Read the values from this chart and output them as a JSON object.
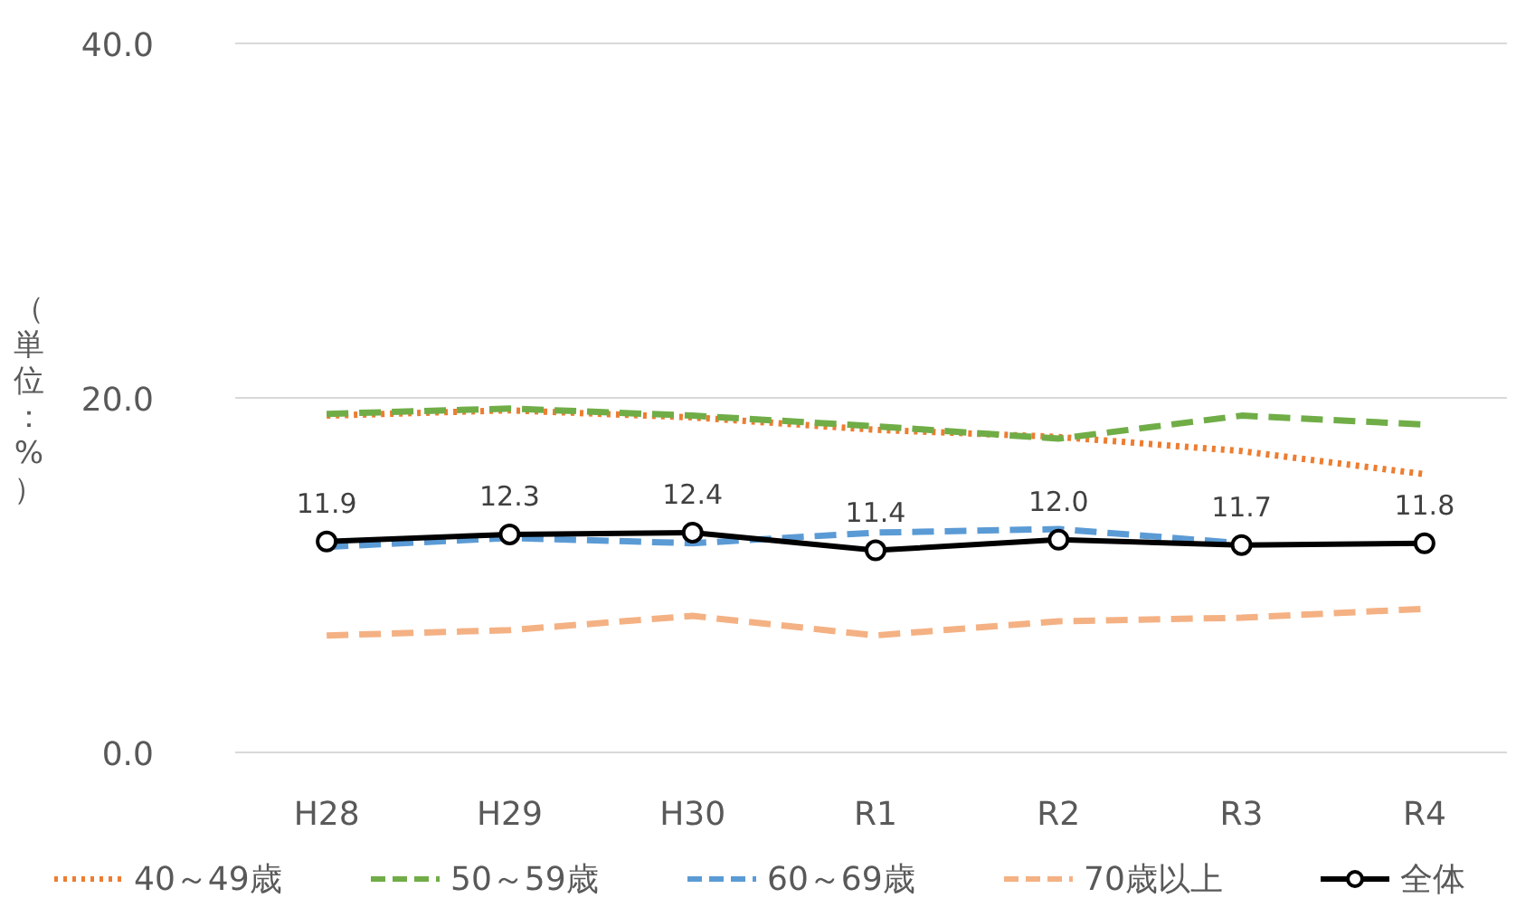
{
  "chart_data": {
    "type": "line",
    "ylabel": "（単位：%）",
    "categories": [
      "H28",
      "H29",
      "H30",
      "R1",
      "R2",
      "R3",
      "R4"
    ],
    "ylim": [
      0,
      40
    ],
    "yticks": [
      {
        "value": 0,
        "label": "0.0"
      },
      {
        "value": 20,
        "label": "20.0"
      },
      {
        "value": 40,
        "label": "40.0"
      }
    ],
    "grid": "y",
    "legend": "bottom",
    "series": [
      {
        "name": "40～49歳",
        "color": "#ed7d31",
        "line_style": "dotted",
        "marker": "none",
        "values": [
          19.0,
          19.3,
          18.9,
          18.2,
          17.8,
          17.0,
          15.7
        ]
      },
      {
        "name": "50～59歳",
        "color": "#70ad47",
        "line_style": "dashed",
        "marker": "none",
        "values": [
          19.1,
          19.4,
          19.0,
          18.4,
          17.7,
          19.0,
          18.5
        ]
      },
      {
        "name": "60～69歳",
        "color": "#5b9bd5",
        "line_style": "dashed",
        "marker": "none",
        "values": [
          11.6,
          12.1,
          11.8,
          12.4,
          12.6,
          11.8,
          null
        ]
      },
      {
        "name": "70歳以上",
        "color": "#f4b183",
        "line_style": "dashed",
        "marker": "none",
        "values": [
          6.6,
          6.9,
          7.7,
          6.6,
          7.4,
          7.6,
          8.1
        ]
      },
      {
        "name": "全体",
        "color": "#000000",
        "line_style": "solid",
        "marker": "circle",
        "values": [
          11.9,
          12.3,
          12.4,
          11.4,
          12.0,
          11.7,
          11.8
        ],
        "value_labels": [
          "11.9",
          "12.3",
          "12.4",
          "11.4",
          "12.0",
          "11.7",
          "11.8"
        ]
      }
    ]
  }
}
